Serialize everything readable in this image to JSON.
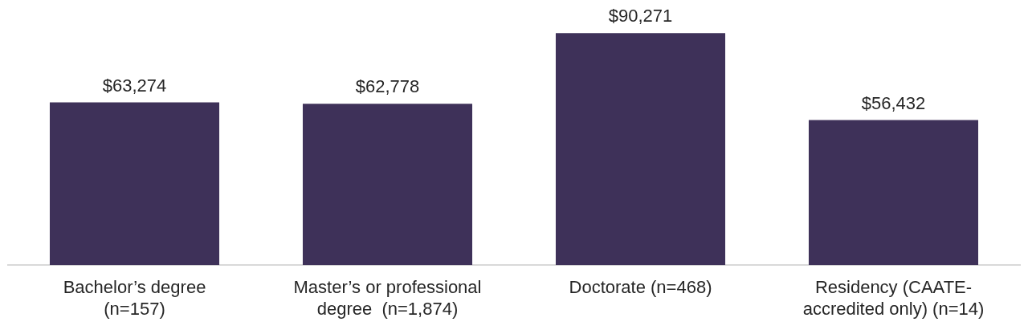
{
  "chart_data": {
    "type": "bar",
    "categories": [
      "Bachelor’s degree (n=157)",
      "Master’s or professional degree  (n=1,874)",
      "Doctorate (n=468)",
      "Residency (CAATE-accredited only) (n=14)"
    ],
    "values": [
      63274,
      62778,
      90271,
      56432
    ],
    "value_labels": [
      "$63,274",
      "$62,778",
      "$90,271",
      "$56,432"
    ],
    "color": "#3e3159"
  }
}
